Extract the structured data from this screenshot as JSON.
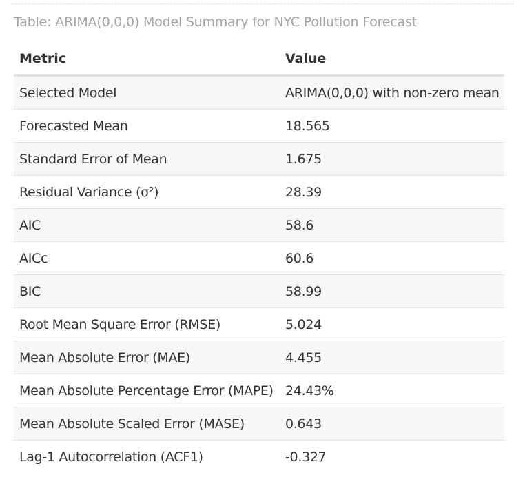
{
  "caption": "Table: ARIMA(0,0,0) Model Summary for NYC Pollution Forecast",
  "table": {
    "headers": [
      "Metric",
      "Value"
    ],
    "rows": [
      [
        "Selected Model",
        "ARIMA(0,0,0) with non-zero mean"
      ],
      [
        "Forecasted Mean",
        "18.565"
      ],
      [
        "Standard Error of Mean",
        "1.675"
      ],
      [
        "Residual Variance (σ²)",
        "28.39"
      ],
      [
        "AIC",
        "58.6"
      ],
      [
        "AICc",
        "60.6"
      ],
      [
        "BIC",
        "58.99"
      ],
      [
        "Root Mean Square Error (RMSE)",
        "5.024"
      ],
      [
        "Mean Absolute Error (MAE)",
        "4.455"
      ],
      [
        "Mean Absolute Percentage Error (MAPE)",
        "24.43%"
      ],
      [
        "Mean Absolute Scaled Error (MASE)",
        "0.643"
      ],
      [
        "Lag-1 Autocorrelation (ACF1)",
        "-0.327"
      ]
    ]
  },
  "colors": {
    "caption": "#a3a3a3",
    "text": "#333333",
    "stripe": "#f7f7f7",
    "rule": "#e2e2e2"
  }
}
